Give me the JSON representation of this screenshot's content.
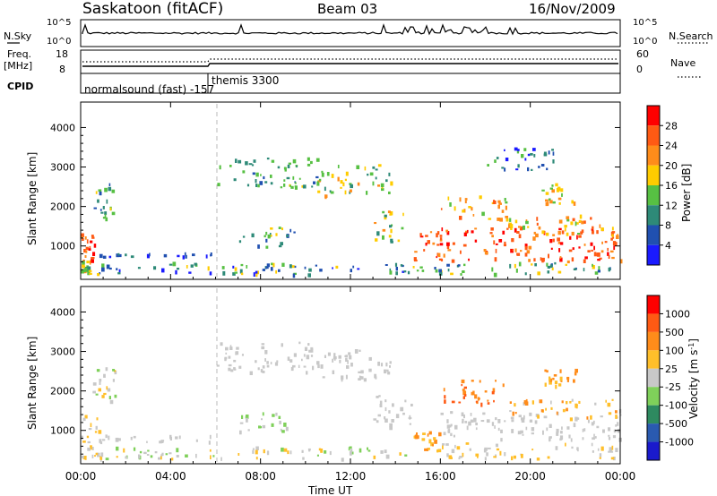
{
  "header": {
    "station": "Saskatoon (fitACF)",
    "beam": "Beam 03",
    "date": "16/Nov/2009"
  },
  "noise_panel": {
    "left_label": "N.Sky",
    "right_label": "N.Search",
    "left_ticks": [
      "10^5",
      "10^0"
    ],
    "right_ticks": [
      "10^5",
      "10^0"
    ]
  },
  "freq_panel": {
    "left_label_line1": "Freq.",
    "left_label_line2": "[MHz]",
    "left_ticks": [
      "18",
      "8"
    ],
    "right_label": "Nave",
    "right_ticks": [
      "60",
      "0"
    ]
  },
  "cpid_panel": {
    "label": "CPID",
    "programs": [
      "normalsound (fast) -157",
      "themis 3300"
    ]
  },
  "x_axis": {
    "label": "Time UT",
    "ticks": [
      "00:00",
      "04:00",
      "08:00",
      "12:00",
      "16:00",
      "20:00",
      "00:00"
    ]
  },
  "chart_data": [
    {
      "type": "heatmap",
      "name": "power",
      "ylabel": "Slant Range [km]",
      "yticks": [
        "1000",
        "2000",
        "3000",
        "4000"
      ],
      "ylim": [
        200,
        4600
      ],
      "xlim_hours": [
        0,
        24
      ],
      "colorbar_label": "Power [dB]",
      "colorbar_ticks": [
        "4",
        "8",
        "12",
        "16",
        "20",
        "24",
        "28"
      ],
      "colors": [
        "#1a1aff",
        "#2050b0",
        "#2e8a78",
        "#57c043",
        "#ffcc00",
        "#ff8c1a",
        "#ff5a14",
        "#ff0000"
      ],
      "regions": [
        {
          "t": [
            0.0,
            0.6
          ],
          "r": [
            650,
            1350
          ],
          "level": [
            5,
            7
          ]
        },
        {
          "t": [
            0.0,
            0.4
          ],
          "r": [
            300,
            650
          ],
          "level": [
            2,
            5
          ]
        },
        {
          "t": [
            0.5,
            1.5
          ],
          "r": [
            1700,
            2700
          ],
          "level": [
            1,
            4
          ]
        },
        {
          "t": [
            0.6,
            6.0
          ],
          "r": [
            750,
            850
          ],
          "level": [
            0,
            2
          ]
        },
        {
          "t": [
            0.5,
            14.8
          ],
          "r": [
            300,
            600
          ],
          "level": [
            0,
            4
          ]
        },
        {
          "t": [
            6.0,
            10.5
          ],
          "r": [
            2500,
            3250
          ],
          "level": [
            1,
            4
          ]
        },
        {
          "t": [
            10.5,
            13.8
          ],
          "r": [
            2300,
            3100
          ],
          "level": [
            2,
            5
          ]
        },
        {
          "t": [
            7.0,
            9.5
          ],
          "r": [
            1000,
            1500
          ],
          "level": [
            1,
            4
          ]
        },
        {
          "t": [
            13.0,
            14.5
          ],
          "r": [
            1100,
            1900
          ],
          "level": [
            2,
            5
          ]
        },
        {
          "t": [
            14.8,
            24.0
          ],
          "r": [
            600,
            1500
          ],
          "level": [
            5,
            7
          ]
        },
        {
          "t": [
            16.0,
            19.0
          ],
          "r": [
            1700,
            2300
          ],
          "level": [
            3,
            6
          ]
        },
        {
          "t": [
            19.0,
            24.0
          ],
          "r": [
            1300,
            1800
          ],
          "level": [
            3,
            6
          ]
        },
        {
          "t": [
            20.5,
            22.0
          ],
          "r": [
            2100,
            2600
          ],
          "level": [
            3,
            5
          ]
        },
        {
          "t": [
            14.5,
            24.0
          ],
          "r": [
            300,
            600
          ],
          "level": [
            1,
            4
          ]
        },
        {
          "t": [
            18.0,
            21.0
          ],
          "r": [
            2900,
            3500
          ],
          "level": [
            0,
            3
          ]
        }
      ]
    },
    {
      "type": "heatmap",
      "name": "velocity",
      "ylabel": "Slant Range [km]",
      "yticks": [
        "1000",
        "2000",
        "3000",
        "4000"
      ],
      "ylim": [
        200,
        4600
      ],
      "xlim_hours": [
        0,
        24
      ],
      "colorbar_label": "Velocity [m s^-1]",
      "colorbar_ticks": [
        "1000",
        "500",
        "100",
        "25",
        "-25",
        "-100",
        "-500",
        "-1000"
      ],
      "colors": [
        "#1a1acc",
        "#2a5ab0",
        "#2e8a60",
        "#7fd05a",
        "#c8c8c8",
        "#ffbf2a",
        "#ff8c1a",
        "#ff5a14",
        "#ff0000"
      ],
      "regions": [
        {
          "t": [
            0.0,
            0.8
          ],
          "r": [
            300,
            1400
          ],
          "level": [
            4,
            5
          ]
        },
        {
          "t": [
            0.5,
            1.5
          ],
          "r": [
            1700,
            2700
          ],
          "level": [
            3,
            5
          ]
        },
        {
          "t": [
            0.6,
            6.0
          ],
          "r": [
            700,
            900
          ],
          "level": [
            4,
            4
          ]
        },
        {
          "t": [
            0.5,
            14.8
          ],
          "r": [
            300,
            600
          ],
          "level": [
            3,
            5
          ]
        },
        {
          "t": [
            6.0,
            10.5
          ],
          "r": [
            2500,
            3250
          ],
          "level": [
            4,
            4
          ]
        },
        {
          "t": [
            10.5,
            13.8
          ],
          "r": [
            2300,
            3100
          ],
          "level": [
            4,
            4
          ]
        },
        {
          "t": [
            7.0,
            9.5
          ],
          "r": [
            1000,
            1500
          ],
          "level": [
            3,
            4
          ]
        },
        {
          "t": [
            13.0,
            14.8
          ],
          "r": [
            1100,
            1900
          ],
          "level": [
            4,
            4
          ]
        },
        {
          "t": [
            14.8,
            16.0
          ],
          "r": [
            500,
            1000
          ],
          "level": [
            5,
            6
          ]
        },
        {
          "t": [
            16.0,
            24.0
          ],
          "r": [
            800,
            1500
          ],
          "level": [
            4,
            4
          ]
        },
        {
          "t": [
            16.0,
            19.0
          ],
          "r": [
            1700,
            2300
          ],
          "level": [
            6,
            7
          ]
        },
        {
          "t": [
            19.0,
            24.0
          ],
          "r": [
            1300,
            1800
          ],
          "level": [
            4,
            6
          ]
        },
        {
          "t": [
            20.5,
            22.0
          ],
          "r": [
            2100,
            2600
          ],
          "level": [
            5,
            6
          ]
        },
        {
          "t": [
            16.0,
            24.0
          ],
          "r": [
            300,
            700
          ],
          "level": [
            4,
            5
          ]
        }
      ]
    }
  ]
}
